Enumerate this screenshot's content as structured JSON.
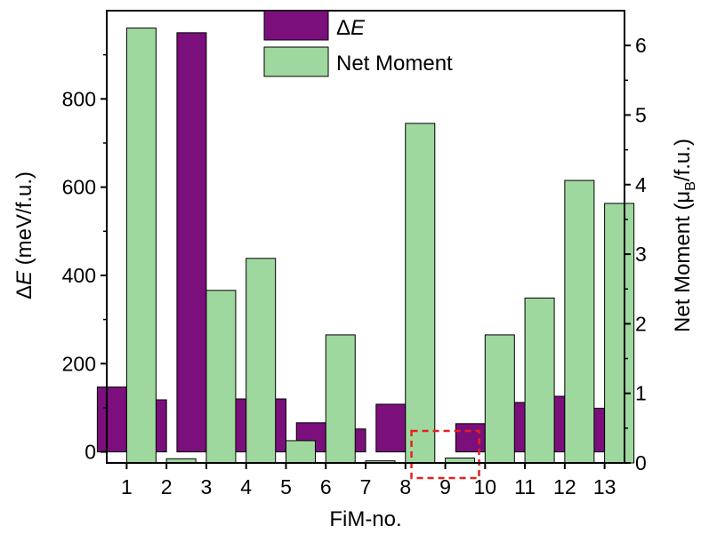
{
  "chart_data": {
    "type": "bar",
    "categories": [
      "1",
      "2",
      "3",
      "4",
      "5",
      "6",
      "7",
      "8",
      "9",
      "10",
      "11",
      "12",
      "13"
    ],
    "series": [
      {
        "name": "ΔE",
        "name_prefix": "Δ",
        "name_italic": "E",
        "axis": "left",
        "color": "#7b0f7b",
        "values": [
          147,
          118,
          950,
          120,
          120,
          66,
          52,
          108,
          0,
          64,
          112,
          126,
          99
        ]
      },
      {
        "name": "Net Moment",
        "axis": "right",
        "color": "#9fd89f",
        "values": [
          6.25,
          0.06,
          2.48,
          2.94,
          0.32,
          1.84,
          0.03,
          4.88,
          0.07,
          1.84,
          2.37,
          4.06,
          3.73
        ]
      }
    ],
    "xlabel": "FiM-no.",
    "ylabel_left": {
      "prefix": "Δ",
      "italic": "E",
      "rest": " (meV/f.u.)"
    },
    "ylabel_right": {
      "main": "Net Moment (μ",
      "sub": "B",
      "rest": "/f.u.)"
    },
    "ylim_left": [
      -25,
      1000
    ],
    "yticks_left": [
      0,
      200,
      400,
      600,
      800
    ],
    "ylim_right": [
      0,
      6.5
    ],
    "yticks_right": [
      0,
      1,
      2,
      3,
      4,
      5,
      6
    ],
    "grid": false,
    "legend_position": "top-center",
    "highlight": {
      "category": "9",
      "style": "red-dashed-box",
      "color": "#e8201e"
    }
  }
}
